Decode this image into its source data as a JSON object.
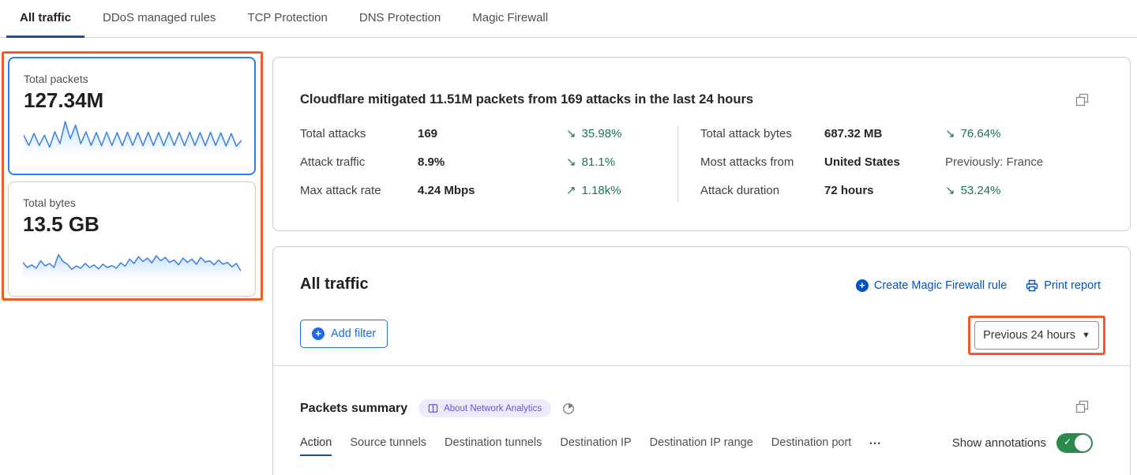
{
  "tabs": {
    "items": [
      {
        "label": "All traffic",
        "active": true
      },
      {
        "label": "DDoS managed rules",
        "active": false
      },
      {
        "label": "TCP Protection",
        "active": false
      },
      {
        "label": "DNS Protection",
        "active": false
      },
      {
        "label": "Magic Firewall",
        "active": false
      }
    ]
  },
  "metric_cards": {
    "packets": {
      "label": "Total packets",
      "value": "127.34M",
      "spark": [
        55,
        25,
        60,
        25,
        55,
        20,
        65,
        30,
        95,
        45,
        85,
        30,
        65,
        25,
        63,
        24,
        64,
        25,
        63,
        24,
        64,
        25,
        63,
        24,
        64,
        25,
        63,
        24,
        64,
        25,
        63,
        24,
        64,
        25,
        63,
        24,
        64,
        25,
        62,
        23,
        60,
        22,
        40
      ]
    },
    "bytes": {
      "label": "Total bytes",
      "value": "13.5 GB",
      "spark": [
        45,
        30,
        38,
        28,
        50,
        35,
        42,
        30,
        68,
        48,
        40,
        25,
        35,
        28,
        42,
        30,
        38,
        26,
        40,
        30,
        36,
        28,
        44,
        34,
        55,
        42,
        62,
        48,
        58,
        44,
        65,
        50,
        60,
        45,
        52,
        38,
        58,
        45,
        55,
        40,
        60,
        46,
        50,
        38,
        52,
        40,
        45,
        32,
        42,
        20
      ]
    }
  },
  "summary": {
    "title": "Cloudflare mitigated 11.51M packets from 169 attacks in the last 24 hours",
    "left": [
      {
        "label": "Total attacks",
        "value": "169",
        "arrow": "↘",
        "trend": "35.98%"
      },
      {
        "label": "Attack traffic",
        "value": "8.9%",
        "arrow": "↘",
        "trend": "81.1%"
      },
      {
        "label": "Max attack rate",
        "value": "4.24 Mbps",
        "arrow": "↗",
        "trend": "1.18k%"
      }
    ],
    "right": [
      {
        "label": "Total attack bytes",
        "value": "687.32 MB",
        "arrow": "↘",
        "trend": "76.64%"
      },
      {
        "label": "Most attacks from",
        "value": "United States",
        "arrow": "",
        "trend": "Previously: France"
      },
      {
        "label": "Attack duration",
        "value": "72 hours",
        "arrow": "↘",
        "trend": "53.24%"
      }
    ]
  },
  "all_traffic": {
    "title": "All traffic",
    "create_rule_label": "Create Magic Firewall rule",
    "print_label": "Print report",
    "add_filter_label": "Add filter",
    "time_range_label": "Previous 24 hours"
  },
  "packets_summary": {
    "title": "Packets summary",
    "badge_label": "About Network Analytics",
    "tabs": [
      {
        "label": "Action",
        "active": true
      },
      {
        "label": "Source tunnels",
        "active": false
      },
      {
        "label": "Destination tunnels",
        "active": false
      },
      {
        "label": "Destination IP",
        "active": false
      },
      {
        "label": "Destination IP range",
        "active": false
      },
      {
        "label": "Destination port",
        "active": false
      }
    ],
    "more_label": "•••",
    "show_annotations_label": "Show annotations",
    "toggle_state": "on"
  },
  "colors": {
    "accent_blue": "#0051c3",
    "button_blue": "#1a6ce9",
    "selected_card_border": "#2e7cf0",
    "annotation_orange": "#f15b29",
    "trend_green": "#1e7350",
    "active_tab_underline": "#1b4f9e",
    "badge_purple": "#6358d6",
    "badge_bg": "#eceafc",
    "toggle_green": "#2d8a4e",
    "sparkline_blue": "#4285e8"
  }
}
